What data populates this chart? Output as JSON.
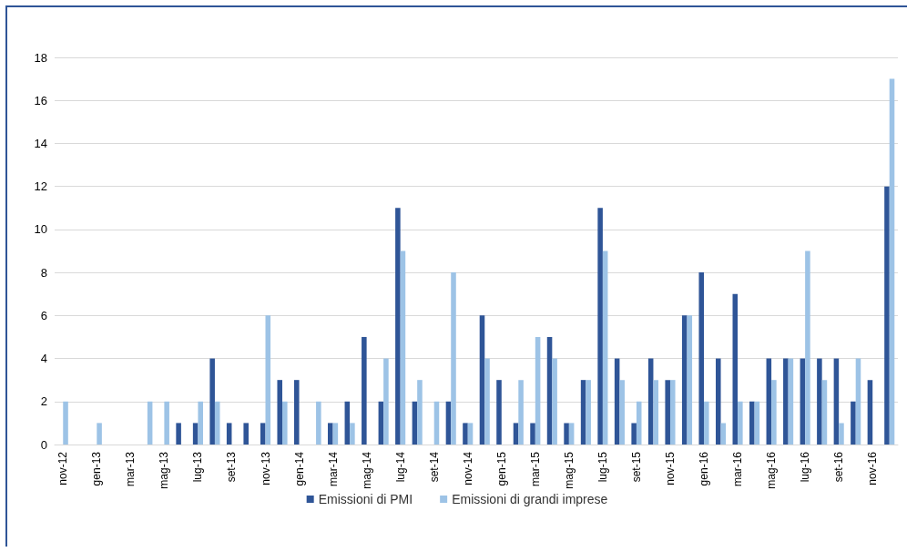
{
  "chart_data": {
    "type": "bar",
    "categories": [
      "nov-12",
      null,
      "gen-13",
      null,
      "mar-13",
      null,
      "mag-13",
      null,
      "lug-13",
      null,
      "set-13",
      null,
      "nov-13",
      null,
      "gen-14",
      null,
      "mar-14",
      null,
      "mag-14",
      null,
      "lug-14",
      null,
      "set-14",
      null,
      "nov-14",
      null,
      "gen-15",
      null,
      "mar-15",
      null,
      "mag-15",
      null,
      "lug-15",
      null,
      "set-15",
      null,
      "nov-15",
      null,
      "gen-16",
      null,
      "mar-16",
      null,
      "mag-16",
      null,
      "lug-16",
      null,
      "set-16",
      null,
      "nov-16",
      null
    ],
    "series": [
      {
        "name": "Emissioni di PMI",
        "color": "#2f5597",
        "values": [
          0,
          0,
          0,
          0,
          0,
          0,
          0,
          1,
          1,
          4,
          1,
          1,
          1,
          3,
          3,
          0,
          1,
          2,
          5,
          2,
          11,
          2,
          0,
          2,
          1,
          6,
          3,
          1,
          1,
          5,
          1,
          3,
          11,
          4,
          1,
          4,
          3,
          6,
          8,
          4,
          7,
          2,
          4,
          4,
          4,
          4,
          4,
          2,
          3,
          12
        ]
      },
      {
        "name": "Emissioni di grandi imprese",
        "color": "#9dc3e6",
        "values": [
          2,
          0,
          1,
          0,
          0,
          2,
          2,
          0,
          2,
          2,
          0,
          0,
          6,
          2,
          0,
          2,
          1,
          1,
          0,
          4,
          9,
          3,
          2,
          8,
          1,
          4,
          0,
          3,
          5,
          4,
          1,
          3,
          9,
          3,
          2,
          3,
          3,
          6,
          2,
          1,
          2,
          2,
          3,
          4,
          9,
          3,
          1,
          4,
          0,
          17
        ]
      }
    ],
    "ylim": [
      0,
      18
    ],
    "yticks": [
      0,
      2,
      4,
      6,
      8,
      10,
      12,
      14,
      16,
      18
    ],
    "grid": "y",
    "legend": "bottom"
  }
}
